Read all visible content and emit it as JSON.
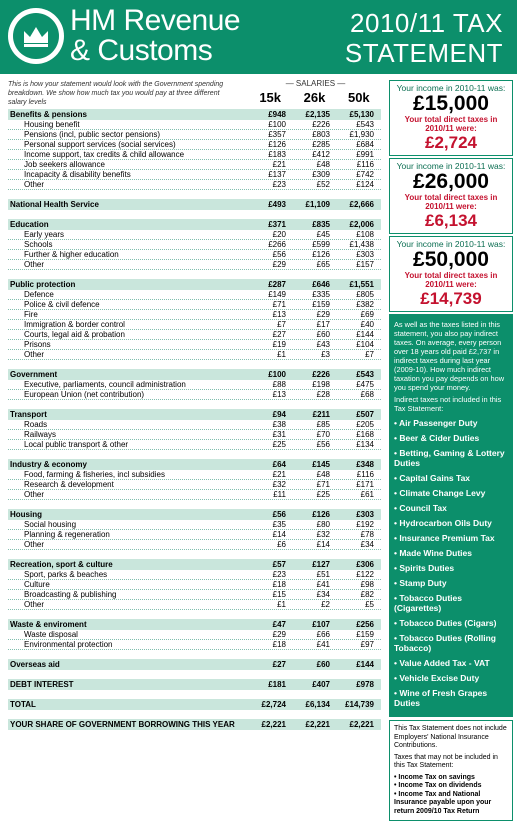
{
  "header": {
    "brand_line1": "HM Revenue",
    "brand_line2": "& Customs",
    "title_line1": "2010/11 TAX",
    "title_line2": "STATEMENT"
  },
  "intro": "This is how your statement would look with the Government spending breakdown. We show how much tax you would pay at three different salary levels",
  "salaries_label": "SALARIES",
  "columns": [
    "15k",
    "26k",
    "50k"
  ],
  "rows": [
    {
      "type": "head",
      "label": "Benefits & pensions",
      "v": [
        "£948",
        "£2,135",
        "£5,130"
      ]
    },
    {
      "type": "sub",
      "label": "Housing benefit",
      "v": [
        "£100",
        "£226",
        "£543"
      ]
    },
    {
      "type": "sub",
      "label": "Pensions (incl, public sector pensions)",
      "v": [
        "£357",
        "£803",
        "£1,930"
      ]
    },
    {
      "type": "sub",
      "label": "Personal support services (social services)",
      "v": [
        "£126",
        "£285",
        "£684"
      ]
    },
    {
      "type": "sub",
      "label": "Income support, tax credits & child allowance",
      "v": [
        "£183",
        "£412",
        "£991"
      ]
    },
    {
      "type": "sub",
      "label": "Job seekers allowance",
      "v": [
        "£21",
        "£48",
        "£116"
      ]
    },
    {
      "type": "sub",
      "label": "Incapacity & disability benefits",
      "v": [
        "£137",
        "£309",
        "£742"
      ]
    },
    {
      "type": "sub",
      "label": "Other",
      "v": [
        "£23",
        "£52",
        "£124"
      ]
    },
    {
      "type": "gap"
    },
    {
      "type": "head",
      "label": "National Health Service",
      "v": [
        "£493",
        "£1,109",
        "£2,666"
      ]
    },
    {
      "type": "gap"
    },
    {
      "type": "head",
      "label": "Education",
      "v": [
        "£371",
        "£835",
        "£2,006"
      ]
    },
    {
      "type": "sub",
      "label": "Early years",
      "v": [
        "£20",
        "£45",
        "£108"
      ]
    },
    {
      "type": "sub",
      "label": "Schools",
      "v": [
        "£266",
        "£599",
        "£1,438"
      ]
    },
    {
      "type": "sub",
      "label": "Further & higher education",
      "v": [
        "£56",
        "£126",
        "£303"
      ]
    },
    {
      "type": "sub",
      "label": "Other",
      "v": [
        "£29",
        "£65",
        "£157"
      ]
    },
    {
      "type": "gap"
    },
    {
      "type": "head",
      "label": "Public protection",
      "v": [
        "£287",
        "£646",
        "£1,551"
      ]
    },
    {
      "type": "sub",
      "label": "Defence",
      "v": [
        "£149",
        "£335",
        "£805"
      ]
    },
    {
      "type": "sub",
      "label": "Police & civil defence",
      "v": [
        "£71",
        "£159",
        "£382"
      ]
    },
    {
      "type": "sub",
      "label": "Fire",
      "v": [
        "£13",
        "£29",
        "£69"
      ]
    },
    {
      "type": "sub",
      "label": "Immigration & border control",
      "v": [
        "£7",
        "£17",
        "£40"
      ]
    },
    {
      "type": "sub",
      "label": "Courts, legal aid & probation",
      "v": [
        "£27",
        "£60",
        "£144"
      ]
    },
    {
      "type": "sub",
      "label": "Prisons",
      "v": [
        "£19",
        "£43",
        "£104"
      ]
    },
    {
      "type": "sub",
      "label": "Other",
      "v": [
        "£1",
        "£3",
        "£7"
      ]
    },
    {
      "type": "gap"
    },
    {
      "type": "head",
      "label": "Government",
      "v": [
        "£100",
        "£226",
        "£543"
      ]
    },
    {
      "type": "sub",
      "label": "Executive, parliaments, council administration",
      "v": [
        "£88",
        "£198",
        "£475"
      ]
    },
    {
      "type": "sub",
      "label": "European Union (net contribution)",
      "v": [
        "£13",
        "£28",
        "£68"
      ]
    },
    {
      "type": "gap"
    },
    {
      "type": "head",
      "label": "Transport",
      "v": [
        "£94",
        "£211",
        "£507"
      ]
    },
    {
      "type": "sub",
      "label": "Roads",
      "v": [
        "£38",
        "£85",
        "£205"
      ]
    },
    {
      "type": "sub",
      "label": "Railways",
      "v": [
        "£31",
        "£70",
        "£168"
      ]
    },
    {
      "type": "sub",
      "label": "Local public transport & other",
      "v": [
        "£25",
        "£56",
        "£134"
      ]
    },
    {
      "type": "gap"
    },
    {
      "type": "head",
      "label": "Industry & economy",
      "v": [
        "£64",
        "£145",
        "£348"
      ]
    },
    {
      "type": "sub",
      "label": "Food, farming & fisheries, incl subsidies",
      "v": [
        "£21",
        "£48",
        "£116"
      ]
    },
    {
      "type": "sub",
      "label": "Research & development",
      "v": [
        "£32",
        "£71",
        "£171"
      ]
    },
    {
      "type": "sub",
      "label": "Other",
      "v": [
        "£11",
        "£25",
        "£61"
      ]
    },
    {
      "type": "gap"
    },
    {
      "type": "head",
      "label": "Housing",
      "v": [
        "£56",
        "£126",
        "£303"
      ]
    },
    {
      "type": "sub",
      "label": "Social housing",
      "v": [
        "£35",
        "£80",
        "£192"
      ]
    },
    {
      "type": "sub",
      "label": "Planning & regeneration",
      "v": [
        "£14",
        "£32",
        "£78"
      ]
    },
    {
      "type": "sub",
      "label": "Other",
      "v": [
        "£6",
        "£14",
        "£34"
      ]
    },
    {
      "type": "gap"
    },
    {
      "type": "head",
      "label": "Recreation, sport & culture",
      "v": [
        "£57",
        "£127",
        "£306"
      ]
    },
    {
      "type": "sub",
      "label": "Sport, parks & beaches",
      "v": [
        "£23",
        "£51",
        "£122"
      ]
    },
    {
      "type": "sub",
      "label": "Culture",
      "v": [
        "£18",
        "£41",
        "£98"
      ]
    },
    {
      "type": "sub",
      "label": "Broadcasting & publishing",
      "v": [
        "£15",
        "£34",
        "£82"
      ]
    },
    {
      "type": "sub",
      "label": "Other",
      "v": [
        "£1",
        "£2",
        "£5"
      ]
    },
    {
      "type": "gap"
    },
    {
      "type": "head",
      "label": "Waste & enviroment",
      "v": [
        "£47",
        "£107",
        "£256"
      ]
    },
    {
      "type": "sub",
      "label": "Waste disposal",
      "v": [
        "£29",
        "£66",
        "£159"
      ]
    },
    {
      "type": "sub",
      "label": "Environmental protection",
      "v": [
        "£18",
        "£41",
        "£97"
      ]
    },
    {
      "type": "gap"
    },
    {
      "type": "head",
      "label": "Overseas aid",
      "v": [
        "£27",
        "£60",
        "£144"
      ]
    },
    {
      "type": "gap"
    },
    {
      "type": "head",
      "label": "DEBT INTEREST",
      "v": [
        "£181",
        "£407",
        "£978"
      ]
    },
    {
      "type": "gap"
    },
    {
      "type": "head",
      "label": "TOTAL",
      "v": [
        "£2,724",
        "£6,134",
        "£14,739"
      ]
    },
    {
      "type": "gap"
    },
    {
      "type": "head",
      "label": "YOUR SHARE OF GOVERNMENT BORROWING THIS YEAR",
      "v": [
        "£2,221",
        "£2,221",
        "£2,221"
      ]
    }
  ],
  "income_boxes": [
    {
      "label": "Your income in 2010-11 was:",
      "income": "£15,000",
      "tax_label": "Your total direct taxes in 2010/11 were:",
      "tax": "£2,724"
    },
    {
      "label": "Your income in 2010-11 was:",
      "income": "£26,000",
      "tax_label": "Your total direct taxes in 2010/11 were:",
      "tax": "£6,134"
    },
    {
      "label": "Your income in 2010-11 was:",
      "income": "£50,000",
      "tax_label": "Your total direct taxes in 2010/11 were:",
      "tax": "£14,739"
    }
  ],
  "indirect": {
    "para1": "As well as the taxes listed in this statement, you also pay indirect taxes. On average, every person over 18 years old paid £2,737 in indirect taxes during last year (2009-10). How much indirect taxation you pay depends on how you spend your money.",
    "para2": "Indirect taxes not included in this Tax Statement:",
    "items": [
      "• Air Passenger Duty",
      "• Beer & Cider Duties",
      "• Betting, Gaming & Lottery Duties",
      "• Capital Gains Tax",
      "• Climate Change Levy",
      "• Council Tax",
      "• Hydrocarbon Oils Duty",
      "• Insurance Premium Tax",
      "• Made Wine Duties",
      "• Spirits Duties",
      "• Stamp Duty",
      "• Tobacco Duties (Cigarettes)",
      "• Tobacco Duties (Cigars)",
      "• Tobacco Duties (Rolling Tobacco)",
      "• Value Added Tax - VAT",
      "• Vehicle Excise Duty",
      "• Wine of Fresh Grapes Duties"
    ]
  },
  "note": {
    "para1": "This Tax Statement does not include Employers' National Insurance Contributions.",
    "para2": "Taxes that may not be included in this Tax Statement:",
    "items": [
      "• Income Tax on savings",
      "• Income Tax on dividends",
      "• Income Tax and National Insurance payable upon your return 2009/10 Tax Return"
    ]
  }
}
